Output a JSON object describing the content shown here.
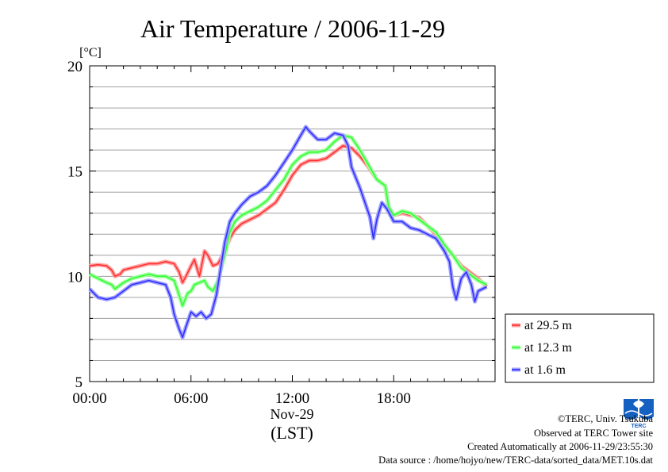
{
  "chart_data": {
    "type": "line",
    "title": "Air Temperature / 2006-11-29",
    "ylabel": "[°C]",
    "xlabel": "(LST)",
    "date_label": "Nov-29",
    "ylim": [
      5,
      20
    ],
    "yticks": [
      "5",
      "10",
      "15",
      "20"
    ],
    "xlim": [
      0,
      24
    ],
    "xticks": [
      {
        "hour": 0,
        "label": "00:00"
      },
      {
        "hour": 6,
        "label": "06:00"
      },
      {
        "hour": 12,
        "label": "12:00"
      },
      {
        "hour": 18,
        "label": "18:00"
      }
    ],
    "grid": true,
    "legend_position": "bottom-right-outside",
    "series": [
      {
        "name": "at 29.5 m",
        "color": "#ff3030",
        "points": [
          [
            0,
            10.5
          ],
          [
            0.5,
            10.55
          ],
          [
            1,
            10.5
          ],
          [
            1.3,
            10.3
          ],
          [
            1.5,
            10.0
          ],
          [
            1.8,
            10.1
          ],
          [
            2,
            10.3
          ],
          [
            2.5,
            10.4
          ],
          [
            3,
            10.5
          ],
          [
            3.5,
            10.6
          ],
          [
            4,
            10.6
          ],
          [
            4.5,
            10.7
          ],
          [
            5,
            10.6
          ],
          [
            5.3,
            10.2
          ],
          [
            5.5,
            9.7
          ],
          [
            5.7,
            10.0
          ],
          [
            6,
            10.5
          ],
          [
            6.2,
            10.8
          ],
          [
            6.5,
            10.0
          ],
          [
            6.8,
            11.2
          ],
          [
            7,
            11.0
          ],
          [
            7.3,
            10.5
          ],
          [
            7.6,
            10.6
          ],
          [
            8,
            11.2
          ],
          [
            8.3,
            11.8
          ],
          [
            8.6,
            12.2
          ],
          [
            9,
            12.5
          ],
          [
            9.5,
            12.7
          ],
          [
            10,
            12.9
          ],
          [
            10.5,
            13.2
          ],
          [
            11,
            13.5
          ],
          [
            11.5,
            14.1
          ],
          [
            12,
            14.8
          ],
          [
            12.5,
            15.3
          ],
          [
            13,
            15.5
          ],
          [
            13.5,
            15.5
          ],
          [
            14,
            15.6
          ],
          [
            14.5,
            15.9
          ],
          [
            15,
            16.2
          ],
          [
            15.5,
            16.1
          ],
          [
            16,
            15.7
          ],
          [
            16.5,
            15.2
          ],
          [
            17,
            14.6
          ],
          [
            17.5,
            14.3
          ],
          [
            17.7,
            13.2
          ],
          [
            18,
            12.9
          ],
          [
            18.5,
            13.0
          ],
          [
            19,
            12.9
          ],
          [
            19.5,
            12.8
          ],
          [
            20,
            12.4
          ],
          [
            20.5,
            12.0
          ],
          [
            21,
            11.5
          ],
          [
            21.5,
            11.0
          ],
          [
            22,
            10.5
          ],
          [
            22.5,
            10.2
          ],
          [
            23,
            9.9
          ],
          [
            23.5,
            9.5
          ]
        ]
      },
      {
        "name": "at 12.3 m",
        "color": "#30ff30",
        "points": [
          [
            0,
            10.1
          ],
          [
            0.5,
            9.9
          ],
          [
            1,
            9.7
          ],
          [
            1.3,
            9.6
          ],
          [
            1.5,
            9.4
          ],
          [
            2,
            9.7
          ],
          [
            2.5,
            9.9
          ],
          [
            3,
            10.0
          ],
          [
            3.5,
            10.1
          ],
          [
            4,
            10.0
          ],
          [
            4.5,
            10.0
          ],
          [
            5,
            9.8
          ],
          [
            5.3,
            9.1
          ],
          [
            5.5,
            8.6
          ],
          [
            5.8,
            9.2
          ],
          [
            6,
            9.3
          ],
          [
            6.2,
            9.6
          ],
          [
            6.5,
            9.7
          ],
          [
            6.8,
            9.8
          ],
          [
            7,
            9.5
          ],
          [
            7.3,
            9.3
          ],
          [
            7.6,
            9.8
          ],
          [
            8,
            11.0
          ],
          [
            8.3,
            12.1
          ],
          [
            8.6,
            12.6
          ],
          [
            9,
            12.9
          ],
          [
            9.5,
            13.1
          ],
          [
            10,
            13.3
          ],
          [
            10.5,
            13.6
          ],
          [
            11,
            14.1
          ],
          [
            11.5,
            14.6
          ],
          [
            12,
            15.3
          ],
          [
            12.5,
            15.7
          ],
          [
            13,
            15.9
          ],
          [
            13.5,
            15.9
          ],
          [
            14,
            16.0
          ],
          [
            14.5,
            16.4
          ],
          [
            15,
            16.7
          ],
          [
            15.5,
            16.6
          ],
          [
            16,
            16.0
          ],
          [
            16.5,
            15.3
          ],
          [
            17,
            14.6
          ],
          [
            17.5,
            14.3
          ],
          [
            17.7,
            13.3
          ],
          [
            18,
            12.9
          ],
          [
            18.5,
            13.1
          ],
          [
            19,
            13.0
          ],
          [
            19.5,
            12.7
          ],
          [
            20,
            12.4
          ],
          [
            20.5,
            12.1
          ],
          [
            21,
            11.5
          ],
          [
            21.5,
            11.0
          ],
          [
            22,
            10.4
          ],
          [
            22.5,
            10.1
          ],
          [
            23,
            9.8
          ],
          [
            23.5,
            9.6
          ]
        ]
      },
      {
        "name": "at 1.6 m",
        "color": "#3030ff",
        "points": [
          [
            0,
            9.4
          ],
          [
            0.5,
            9.0
          ],
          [
            1,
            8.9
          ],
          [
            1.5,
            9.0
          ],
          [
            2,
            9.3
          ],
          [
            2.5,
            9.6
          ],
          [
            3,
            9.7
          ],
          [
            3.5,
            9.8
          ],
          [
            4,
            9.7
          ],
          [
            4.5,
            9.6
          ],
          [
            4.8,
            9.0
          ],
          [
            5,
            8.2
          ],
          [
            5.3,
            7.5
          ],
          [
            5.5,
            7.1
          ],
          [
            5.7,
            7.6
          ],
          [
            6,
            8.3
          ],
          [
            6.3,
            8.1
          ],
          [
            6.6,
            8.3
          ],
          [
            6.9,
            8.0
          ],
          [
            7.2,
            8.2
          ],
          [
            7.5,
            9.1
          ],
          [
            8,
            11.6
          ],
          [
            8.3,
            12.6
          ],
          [
            8.6,
            13.0
          ],
          [
            9,
            13.4
          ],
          [
            9.5,
            13.8
          ],
          [
            10,
            14.0
          ],
          [
            10.5,
            14.3
          ],
          [
            11,
            14.8
          ],
          [
            11.5,
            15.4
          ],
          [
            12,
            16.0
          ],
          [
            12.5,
            16.7
          ],
          [
            12.8,
            17.1
          ],
          [
            13,
            16.9
          ],
          [
            13.5,
            16.5
          ],
          [
            14,
            16.5
          ],
          [
            14.5,
            16.8
          ],
          [
            15,
            16.7
          ],
          [
            15.3,
            16.2
          ],
          [
            15.5,
            15.2
          ],
          [
            16,
            14.2
          ],
          [
            16.3,
            13.5
          ],
          [
            16.6,
            12.8
          ],
          [
            16.8,
            11.8
          ],
          [
            17,
            12.7
          ],
          [
            17.3,
            13.5
          ],
          [
            17.6,
            13.2
          ],
          [
            18,
            12.6
          ],
          [
            18.5,
            12.6
          ],
          [
            19,
            12.3
          ],
          [
            19.5,
            12.2
          ],
          [
            20,
            12.0
          ],
          [
            20.5,
            11.8
          ],
          [
            21,
            11.2
          ],
          [
            21.3,
            10.7
          ],
          [
            21.5,
            9.5
          ],
          [
            21.7,
            8.9
          ],
          [
            22,
            9.9
          ],
          [
            22.3,
            10.2
          ],
          [
            22.6,
            9.6
          ],
          [
            22.8,
            8.8
          ],
          [
            23,
            9.3
          ],
          [
            23.5,
            9.5
          ]
        ]
      }
    ]
  },
  "footer": {
    "copyright": "©TERC, Univ. Tsukuba",
    "observed": "Observed at TERC Tower site",
    "created": "Created Automatically at 2006-11-29/23:55:30",
    "source": "Data source : /home/hojyo/new/TERC-data/sorted_data/MET.10s.dat"
  },
  "logo": {
    "text": "TERC",
    "color": "#1560c0"
  }
}
